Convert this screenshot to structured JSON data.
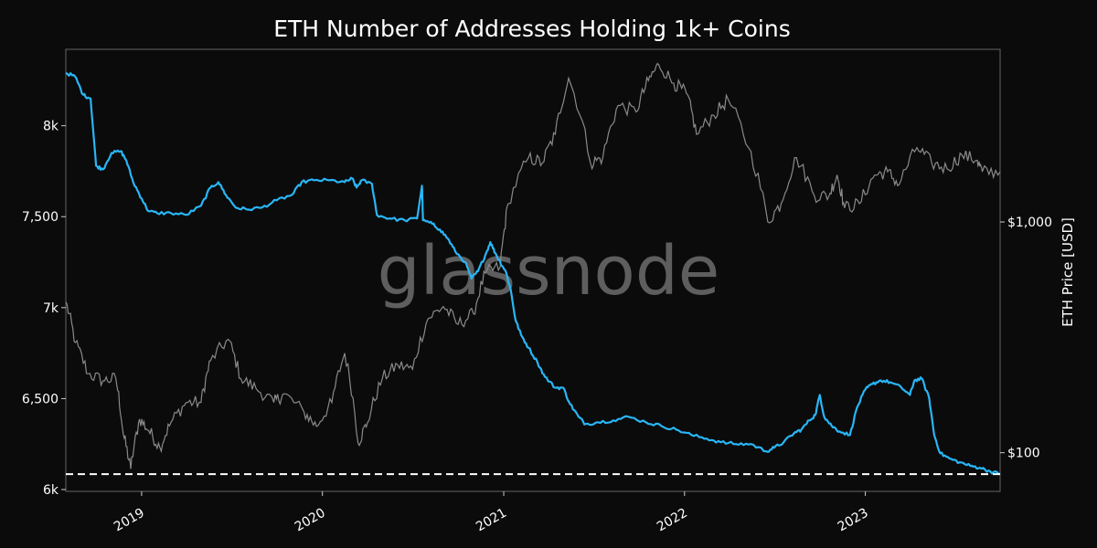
{
  "chart_data": {
    "type": "line",
    "title": "ETH Number of Addresses Holding 1k+ Coins",
    "watermark": "glassnode",
    "x": {
      "scale": "time",
      "ticks": [
        "2019",
        "2020",
        "2021",
        "2022",
        "2023"
      ],
      "tick_dates": [
        "2019-01-01",
        "2020-01-01",
        "2021-01-01",
        "2022-01-01",
        "2023-01-01"
      ],
      "range": [
        "2018-08-01",
        "2023-09-30"
      ]
    },
    "y_left": {
      "ticks": [
        8000,
        7500,
        7000,
        6500,
        6000
      ],
      "tick_labels": [
        "8k",
        "7,500",
        "7k",
        "6,500",
        "6k"
      ],
      "range": [
        5990,
        8420
      ]
    },
    "y_right": {
      "label": "ETH Price [USD]",
      "scale": "log",
      "ticks": [
        1000,
        100
      ],
      "tick_labels": [
        "$1,000",
        "$100"
      ],
      "range": [
        68,
        5600
      ]
    },
    "grid": false,
    "reference_line": {
      "axis": "left",
      "value": 6085,
      "style": "dashed",
      "color": "#ffffff"
    },
    "series": [
      {
        "axis": "left",
        "color": "#29b6f6",
        "points": [
          [
            "2018-08-01",
            8290
          ],
          [
            "2018-08-20",
            8270
          ],
          [
            "2018-09-05",
            8170
          ],
          [
            "2018-09-20",
            8150
          ],
          [
            "2018-10-01",
            7780
          ],
          [
            "2018-10-15",
            7760
          ],
          [
            "2018-11-01",
            7850
          ],
          [
            "2018-11-20",
            7860
          ],
          [
            "2018-12-01",
            7810
          ],
          [
            "2018-12-15",
            7690
          ],
          [
            "2019-01-01",
            7600
          ],
          [
            "2019-01-15",
            7530
          ],
          [
            "2019-02-01",
            7520
          ],
          [
            "2019-03-01",
            7520
          ],
          [
            "2019-04-01",
            7510
          ],
          [
            "2019-05-01",
            7560
          ],
          [
            "2019-05-20",
            7660
          ],
          [
            "2019-06-05",
            7690
          ],
          [
            "2019-06-20",
            7620
          ],
          [
            "2019-07-10",
            7550
          ],
          [
            "2019-08-01",
            7540
          ],
          [
            "2019-09-01",
            7550
          ],
          [
            "2019-10-01",
            7590
          ],
          [
            "2019-11-01",
            7620
          ],
          [
            "2019-11-20",
            7690
          ],
          [
            "2019-12-15",
            7700
          ],
          [
            "2020-01-15",
            7700
          ],
          [
            "2020-02-15",
            7690
          ],
          [
            "2020-03-01",
            7710
          ],
          [
            "2020-03-10",
            7660
          ],
          [
            "2020-03-20",
            7700
          ],
          [
            "2020-04-10",
            7680
          ],
          [
            "2020-04-20",
            7510
          ],
          [
            "2020-05-15",
            7490
          ],
          [
            "2020-06-15",
            7480
          ],
          [
            "2020-07-10",
            7490
          ],
          [
            "2020-07-20",
            7670
          ],
          [
            "2020-07-22",
            7480
          ],
          [
            "2020-08-10",
            7460
          ],
          [
            "2020-08-25",
            7430
          ],
          [
            "2020-09-10",
            7380
          ],
          [
            "2020-09-25",
            7310
          ],
          [
            "2020-10-15",
            7250
          ],
          [
            "2020-10-28",
            7160
          ],
          [
            "2020-11-10",
            7200
          ],
          [
            "2020-11-25",
            7290
          ],
          [
            "2020-12-05",
            7360
          ],
          [
            "2020-12-15",
            7300
          ],
          [
            "2020-12-25",
            7250
          ],
          [
            "2021-01-05",
            7200
          ],
          [
            "2021-01-15",
            7100
          ],
          [
            "2021-01-25",
            6930
          ],
          [
            "2021-02-05",
            6850
          ],
          [
            "2021-02-20",
            6780
          ],
          [
            "2021-03-10",
            6700
          ],
          [
            "2021-03-25",
            6620
          ],
          [
            "2021-04-15",
            6560
          ],
          [
            "2021-05-01",
            6560
          ],
          [
            "2021-05-15",
            6470
          ],
          [
            "2021-06-01",
            6400
          ],
          [
            "2021-06-15",
            6360
          ],
          [
            "2021-07-10",
            6370
          ],
          [
            "2021-08-10",
            6380
          ],
          [
            "2021-09-10",
            6400
          ],
          [
            "2021-10-15",
            6370
          ],
          [
            "2021-11-15",
            6350
          ],
          [
            "2021-12-15",
            6330
          ],
          [
            "2022-01-15",
            6300
          ],
          [
            "2022-02-15",
            6280
          ],
          [
            "2022-03-15",
            6260
          ],
          [
            "2022-04-15",
            6250
          ],
          [
            "2022-05-15",
            6250
          ],
          [
            "2022-06-15",
            6210
          ],
          [
            "2022-07-01",
            6230
          ],
          [
            "2022-07-20",
            6260
          ],
          [
            "2022-08-10",
            6310
          ],
          [
            "2022-08-25",
            6330
          ],
          [
            "2022-09-10",
            6380
          ],
          [
            "2022-09-22",
            6410
          ],
          [
            "2022-10-01",
            6520
          ],
          [
            "2022-10-10",
            6400
          ],
          [
            "2022-10-25",
            6350
          ],
          [
            "2022-11-10",
            6320
          ],
          [
            "2022-12-01",
            6300
          ],
          [
            "2022-12-15",
            6450
          ],
          [
            "2023-01-01",
            6550
          ],
          [
            "2023-01-15",
            6580
          ],
          [
            "2023-02-01",
            6600
          ],
          [
            "2023-02-20",
            6590
          ],
          [
            "2023-03-15",
            6560
          ],
          [
            "2023-04-01",
            6520
          ],
          [
            "2023-04-10",
            6600
          ],
          [
            "2023-04-25",
            6610
          ],
          [
            "2023-05-10",
            6500
          ],
          [
            "2023-05-20",
            6300
          ],
          [
            "2023-06-01",
            6200
          ],
          [
            "2023-06-20",
            6170
          ],
          [
            "2023-07-10",
            6150
          ],
          [
            "2023-08-01",
            6130
          ],
          [
            "2023-08-20",
            6120
          ],
          [
            "2023-09-10",
            6100
          ],
          [
            "2023-09-30",
            6085
          ]
        ]
      },
      {
        "axis": "right",
        "name": "ETH Price [USD]",
        "color": "#8a8a8a",
        "points": [
          [
            "2018-08-01",
            450
          ],
          [
            "2018-08-20",
            300
          ],
          [
            "2018-09-15",
            220
          ],
          [
            "2018-10-15",
            205
          ],
          [
            "2018-11-10",
            210
          ],
          [
            "2018-11-25",
            120
          ],
          [
            "2018-12-10",
            85
          ],
          [
            "2018-12-28",
            140
          ],
          [
            "2019-01-15",
            125
          ],
          [
            "2019-02-07",
            105
          ],
          [
            "2019-03-01",
            135
          ],
          [
            "2019-04-01",
            165
          ],
          [
            "2019-05-01",
            165
          ],
          [
            "2019-05-20",
            250
          ],
          [
            "2019-06-25",
            310
          ],
          [
            "2019-07-20",
            210
          ],
          [
            "2019-08-20",
            190
          ],
          [
            "2019-09-25",
            165
          ],
          [
            "2019-10-15",
            180
          ],
          [
            "2019-11-25",
            150
          ],
          [
            "2019-12-20",
            130
          ],
          [
            "2020-01-20",
            165
          ],
          [
            "2020-02-15",
            270
          ],
          [
            "2020-03-13",
            110
          ],
          [
            "2020-04-01",
            135
          ],
          [
            "2020-05-01",
            210
          ],
          [
            "2020-06-01",
            240
          ],
          [
            "2020-07-01",
            230
          ],
          [
            "2020-08-01",
            380
          ],
          [
            "2020-09-01",
            430
          ],
          [
            "2020-10-01",
            360
          ],
          [
            "2020-11-01",
            400
          ],
          [
            "2020-11-25",
            600
          ],
          [
            "2020-12-25",
            640
          ],
          [
            "2021-01-10",
            1200
          ],
          [
            "2021-02-20",
            1900
          ],
          [
            "2021-03-20",
            1800
          ],
          [
            "2021-04-15",
            2400
          ],
          [
            "2021-05-12",
            4200
          ],
          [
            "2021-06-25",
            1800
          ],
          [
            "2021-07-20",
            1900
          ],
          [
            "2021-08-20",
            3200
          ],
          [
            "2021-09-25",
            3000
          ],
          [
            "2021-10-20",
            4100
          ],
          [
            "2021-11-10",
            4800
          ],
          [
            "2021-12-10",
            4000
          ],
          [
            "2022-01-05",
            3600
          ],
          [
            "2022-01-25",
            2400
          ],
          [
            "2022-03-01",
            2900
          ],
          [
            "2022-03-30",
            3400
          ],
          [
            "2022-05-10",
            2100
          ],
          [
            "2022-06-18",
            1000
          ],
          [
            "2022-07-15",
            1200
          ],
          [
            "2022-08-15",
            1900
          ],
          [
            "2022-09-20",
            1300
          ],
          [
            "2022-10-20",
            1300
          ],
          [
            "2022-11-05",
            1600
          ],
          [
            "2022-11-20",
            1150
          ],
          [
            "2022-12-20",
            1200
          ],
          [
            "2023-01-20",
            1600
          ],
          [
            "2023-02-15",
            1650
          ],
          [
            "2023-03-10",
            1450
          ],
          [
            "2023-04-15",
            2100
          ],
          [
            "2023-05-15",
            1800
          ],
          [
            "2023-06-15",
            1700
          ],
          [
            "2023-07-15",
            1950
          ],
          [
            "2023-08-15",
            1850
          ],
          [
            "2023-08-25",
            1650
          ],
          [
            "2023-09-30",
            1650
          ]
        ]
      }
    ]
  }
}
